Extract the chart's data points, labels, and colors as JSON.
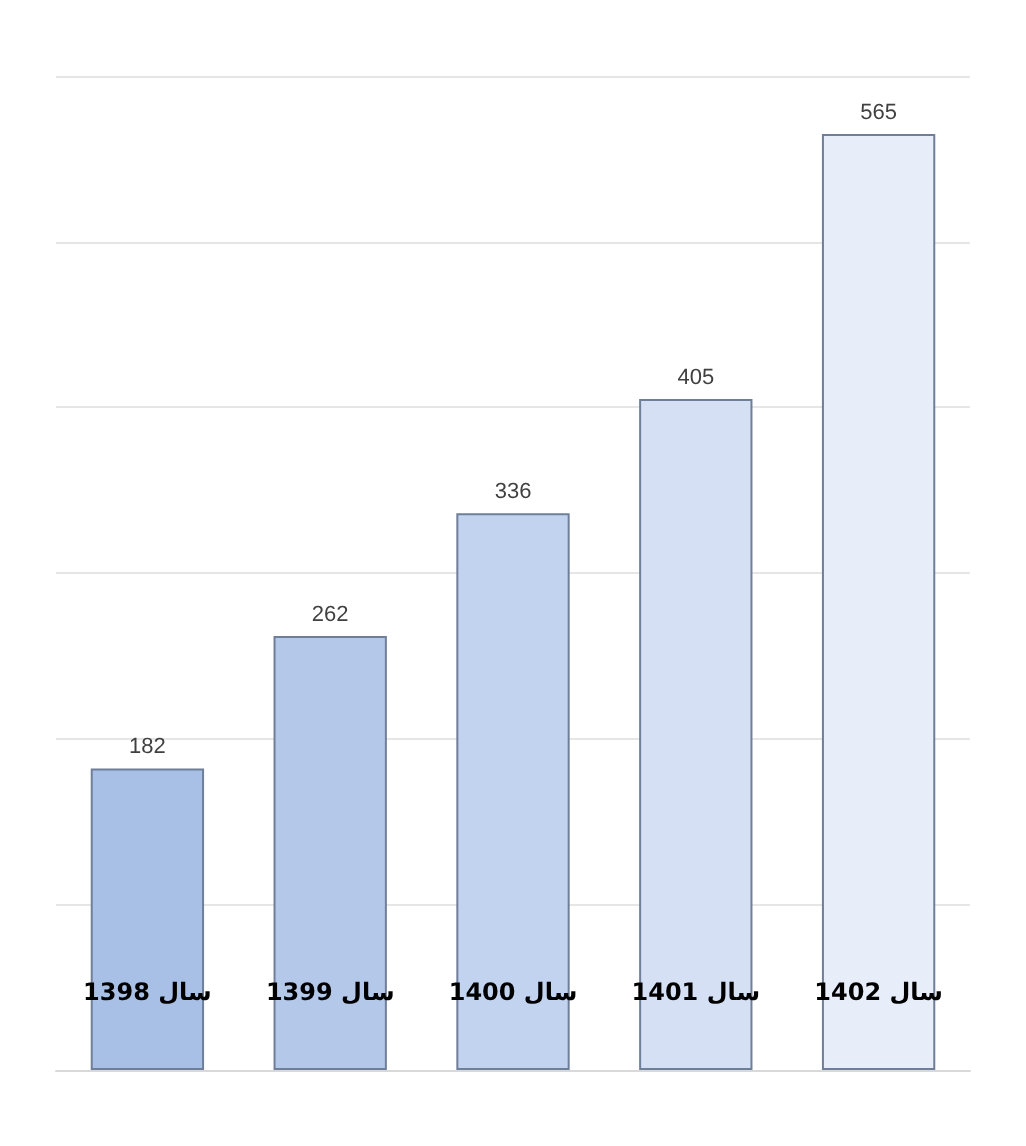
{
  "chart_data": {
    "type": "bar",
    "categories": [
      "سال 1398",
      "سال 1399",
      "سال 1400",
      "سال 1401",
      "سال 1402"
    ],
    "values": [
      182,
      262,
      336,
      405,
      565
    ],
    "colors": [
      "#a9c0e6",
      "#b4c8ea",
      "#c2d3f0",
      "#d5e0f5",
      "#e8eef9"
    ],
    "data_labels": true,
    "grid": "y"
  }
}
